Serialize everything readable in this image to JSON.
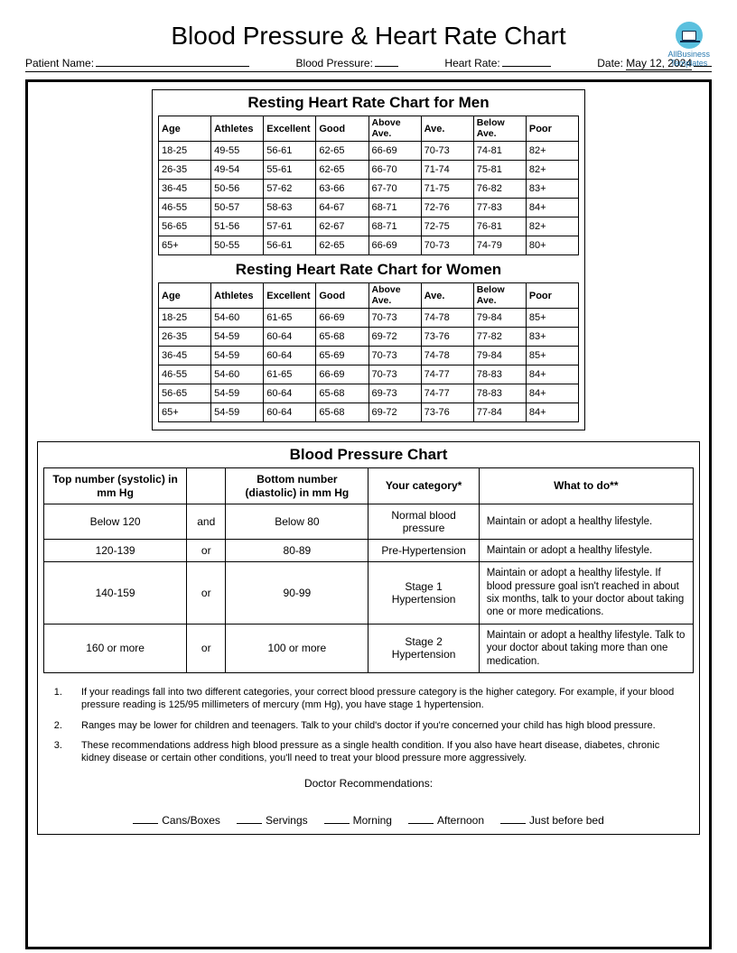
{
  "title": "Blood Pressure & Heart Rate Chart",
  "logo": {
    "line1": "AllBusiness",
    "line2": "Templates"
  },
  "header": {
    "patient_name_label": "Patient Name:",
    "blood_pressure_label": "Blood Pressure:",
    "heart_rate_label": "Heart Rate:",
    "date_label": "Date:",
    "date_value": "May 12, 2024"
  },
  "men_chart": {
    "title": "Resting Heart Rate Chart for Men",
    "columns": [
      "Age",
      "Athletes",
      "Excellent",
      "Good",
      "Above Ave.",
      "Ave.",
      "Below Ave.",
      "Poor"
    ],
    "rows": [
      [
        "18-25",
        "49-55",
        "56-61",
        "62-65",
        "66-69",
        "70-73",
        "74-81",
        "82+"
      ],
      [
        "26-35",
        "49-54",
        "55-61",
        "62-65",
        "66-70",
        "71-74",
        "75-81",
        "82+"
      ],
      [
        "36-45",
        "50-56",
        "57-62",
        "63-66",
        "67-70",
        "71-75",
        "76-82",
        "83+"
      ],
      [
        "46-55",
        "50-57",
        "58-63",
        "64-67",
        "68-71",
        "72-76",
        "77-83",
        "84+"
      ],
      [
        "56-65",
        "51-56",
        "57-61",
        "62-67",
        "68-71",
        "72-75",
        "76-81",
        "82+"
      ],
      [
        "65+",
        "50-55",
        "56-61",
        "62-65",
        "66-69",
        "70-73",
        "74-79",
        "80+"
      ]
    ]
  },
  "women_chart": {
    "title": "Resting Heart Rate Chart for Women",
    "columns": [
      "Age",
      "Athletes",
      "Excellent",
      "Good",
      "Above Ave.",
      "Ave.",
      "Below Ave.",
      "Poor"
    ],
    "rows": [
      [
        "18-25",
        "54-60",
        "61-65",
        "66-69",
        "70-73",
        "74-78",
        "79-84",
        "85+"
      ],
      [
        "26-35",
        "54-59",
        "60-64",
        "65-68",
        "69-72",
        "73-76",
        "77-82",
        "83+"
      ],
      [
        "36-45",
        "54-59",
        "60-64",
        "65-69",
        "70-73",
        "74-78",
        "79-84",
        "85+"
      ],
      [
        "46-55",
        "54-60",
        "61-65",
        "66-69",
        "70-73",
        "74-77",
        "78-83",
        "84+"
      ],
      [
        "56-65",
        "54-59",
        "60-64",
        "65-68",
        "69-73",
        "74-77",
        "78-83",
        "84+"
      ],
      [
        "65+",
        "54-59",
        "60-64",
        "65-68",
        "69-72",
        "73-76",
        "77-84",
        "84+"
      ]
    ]
  },
  "bp_chart": {
    "title": "Blood Pressure Chart",
    "columns": [
      "Top number (systolic) in mm Hg",
      "",
      "Bottom number (diastolic) in mm Hg",
      "Your category*",
      "What to do**"
    ],
    "rows": [
      [
        "Below 120",
        "and",
        "Below 80",
        "Normal blood pressure",
        "Maintain or adopt a healthy lifestyle."
      ],
      [
        "120-139",
        "or",
        "80-89",
        "Pre-Hypertension",
        "Maintain or adopt a healthy lifestyle."
      ],
      [
        "140-159",
        "or",
        "90-99",
        "Stage 1 Hypertension",
        "Maintain or adopt a healthy lifestyle. If blood pressure goal isn't reached in about six months, talk to your doctor about taking one or more medications."
      ],
      [
        "160 or more",
        "or",
        "100 or more",
        "Stage 2 Hypertension",
        "Maintain or adopt a healthy lifestyle. Talk to your doctor about taking more than one medication."
      ]
    ]
  },
  "notes": [
    "If your readings fall into two different categories, your correct blood pressure category is the higher category. For example, if your blood pressure reading is 125/95 millimeters of mercury (mm Hg), you have stage 1 hypertension.",
    "Ranges may be lower for children and teenagers. Talk to your child's doctor if you're concerned your child has high blood pressure.",
    "These recommendations address high blood pressure as a single health condition. If you also have heart disease, diabetes, chronic kidney disease or certain other conditions, you'll need to treat your blood pressure more aggressively."
  ],
  "doctor_rec_label": "Doctor Recommendations:",
  "bottom": [
    "Cans/Boxes",
    "Servings",
    "Morning",
    "Afternoon",
    "Just before bed"
  ]
}
